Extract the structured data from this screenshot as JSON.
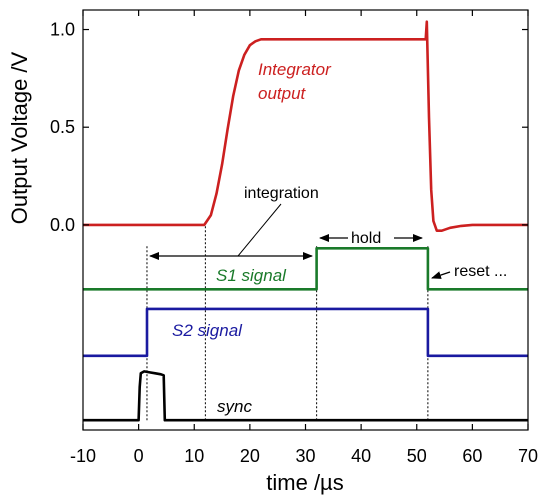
{
  "chart_data": {
    "type": "line",
    "title": "",
    "xlabel": "time /µs",
    "ylabel": "Output Voltage /V",
    "xlim": [
      -10,
      70
    ],
    "ylim": [
      -1.05,
      1.1
    ],
    "x_ticks": [
      -10,
      0,
      10,
      20,
      30,
      40,
      50,
      60,
      70
    ],
    "y_ticks": [
      0.0,
      0.5,
      1.0
    ],
    "y_tick_labels": [
      "0.0",
      "0.5",
      "1.0"
    ],
    "grid": false,
    "series": [
      {
        "name": "Integrator output",
        "color": "#cc2020",
        "x": [
          -10,
          11.8,
          13,
          14,
          15,
          16,
          17,
          18,
          19,
          20,
          21,
          22,
          24,
          26,
          30,
          40,
          50,
          51.6,
          51.8,
          52.2,
          52.6,
          53,
          53.6,
          54.5,
          56,
          58,
          60,
          70
        ],
        "y": [
          0,
          0,
          0.05,
          0.16,
          0.31,
          0.49,
          0.66,
          0.79,
          0.87,
          0.92,
          0.94,
          0.95,
          0.95,
          0.95,
          0.95,
          0.95,
          0.95,
          0.95,
          1.04,
          0.55,
          0.18,
          0.02,
          -0.03,
          -0.03,
          -0.015,
          -0.005,
          0,
          0
        ]
      },
      {
        "name": "S1 signal",
        "color": "#1a7a2a",
        "x": [
          -10,
          32,
          32,
          52,
          52,
          70
        ],
        "y": [
          -0.33,
          -0.33,
          -0.12,
          -0.12,
          -0.33,
          -0.33
        ]
      },
      {
        "name": "S2 signal",
        "color": "#1a1aa0",
        "x": [
          -10,
          1.5,
          1.5,
          52,
          52,
          70
        ],
        "y": [
          -0.67,
          -0.67,
          -0.43,
          -0.43,
          -0.67,
          -0.67
        ]
      },
      {
        "name": "sync",
        "color": "#000000",
        "x": [
          -10,
          0,
          0.2,
          0.4,
          1,
          2,
          3,
          4,
          4.5,
          4.7,
          5,
          70
        ],
        "y": [
          -1.0,
          -1.0,
          -0.83,
          -0.76,
          -0.75,
          -0.755,
          -0.76,
          -0.765,
          -0.77,
          -1.0,
          -1.0,
          -1.0
        ]
      }
    ],
    "vlines": [
      {
        "x": 1.5,
        "y": [
          -1.0,
          -0.1
        ]
      },
      {
        "x": 12,
        "y": [
          -1.0,
          0.0
        ]
      },
      {
        "x": 32,
        "y": [
          -1.0,
          -0.1
        ]
      },
      {
        "x": 52,
        "y": [
          -1.0,
          -0.1
        ]
      }
    ],
    "annotations": [
      {
        "text": "Integrator",
        "color": "#cc2020",
        "italic": true
      },
      {
        "text": "output",
        "color": "#cc2020",
        "italic": true
      },
      {
        "text": "integration",
        "color": "#000000",
        "italic": false
      },
      {
        "text": "hold",
        "color": "#000000",
        "italic": false
      },
      {
        "text": "reset ...",
        "color": "#000000",
        "italic": false
      },
      {
        "text": "S1 signal",
        "color": "#1a7a2a",
        "italic": true
      },
      {
        "text": "S2 signal",
        "color": "#1a1aa0",
        "italic": true
      },
      {
        "text": "sync",
        "color": "#000000",
        "italic": true
      }
    ]
  }
}
